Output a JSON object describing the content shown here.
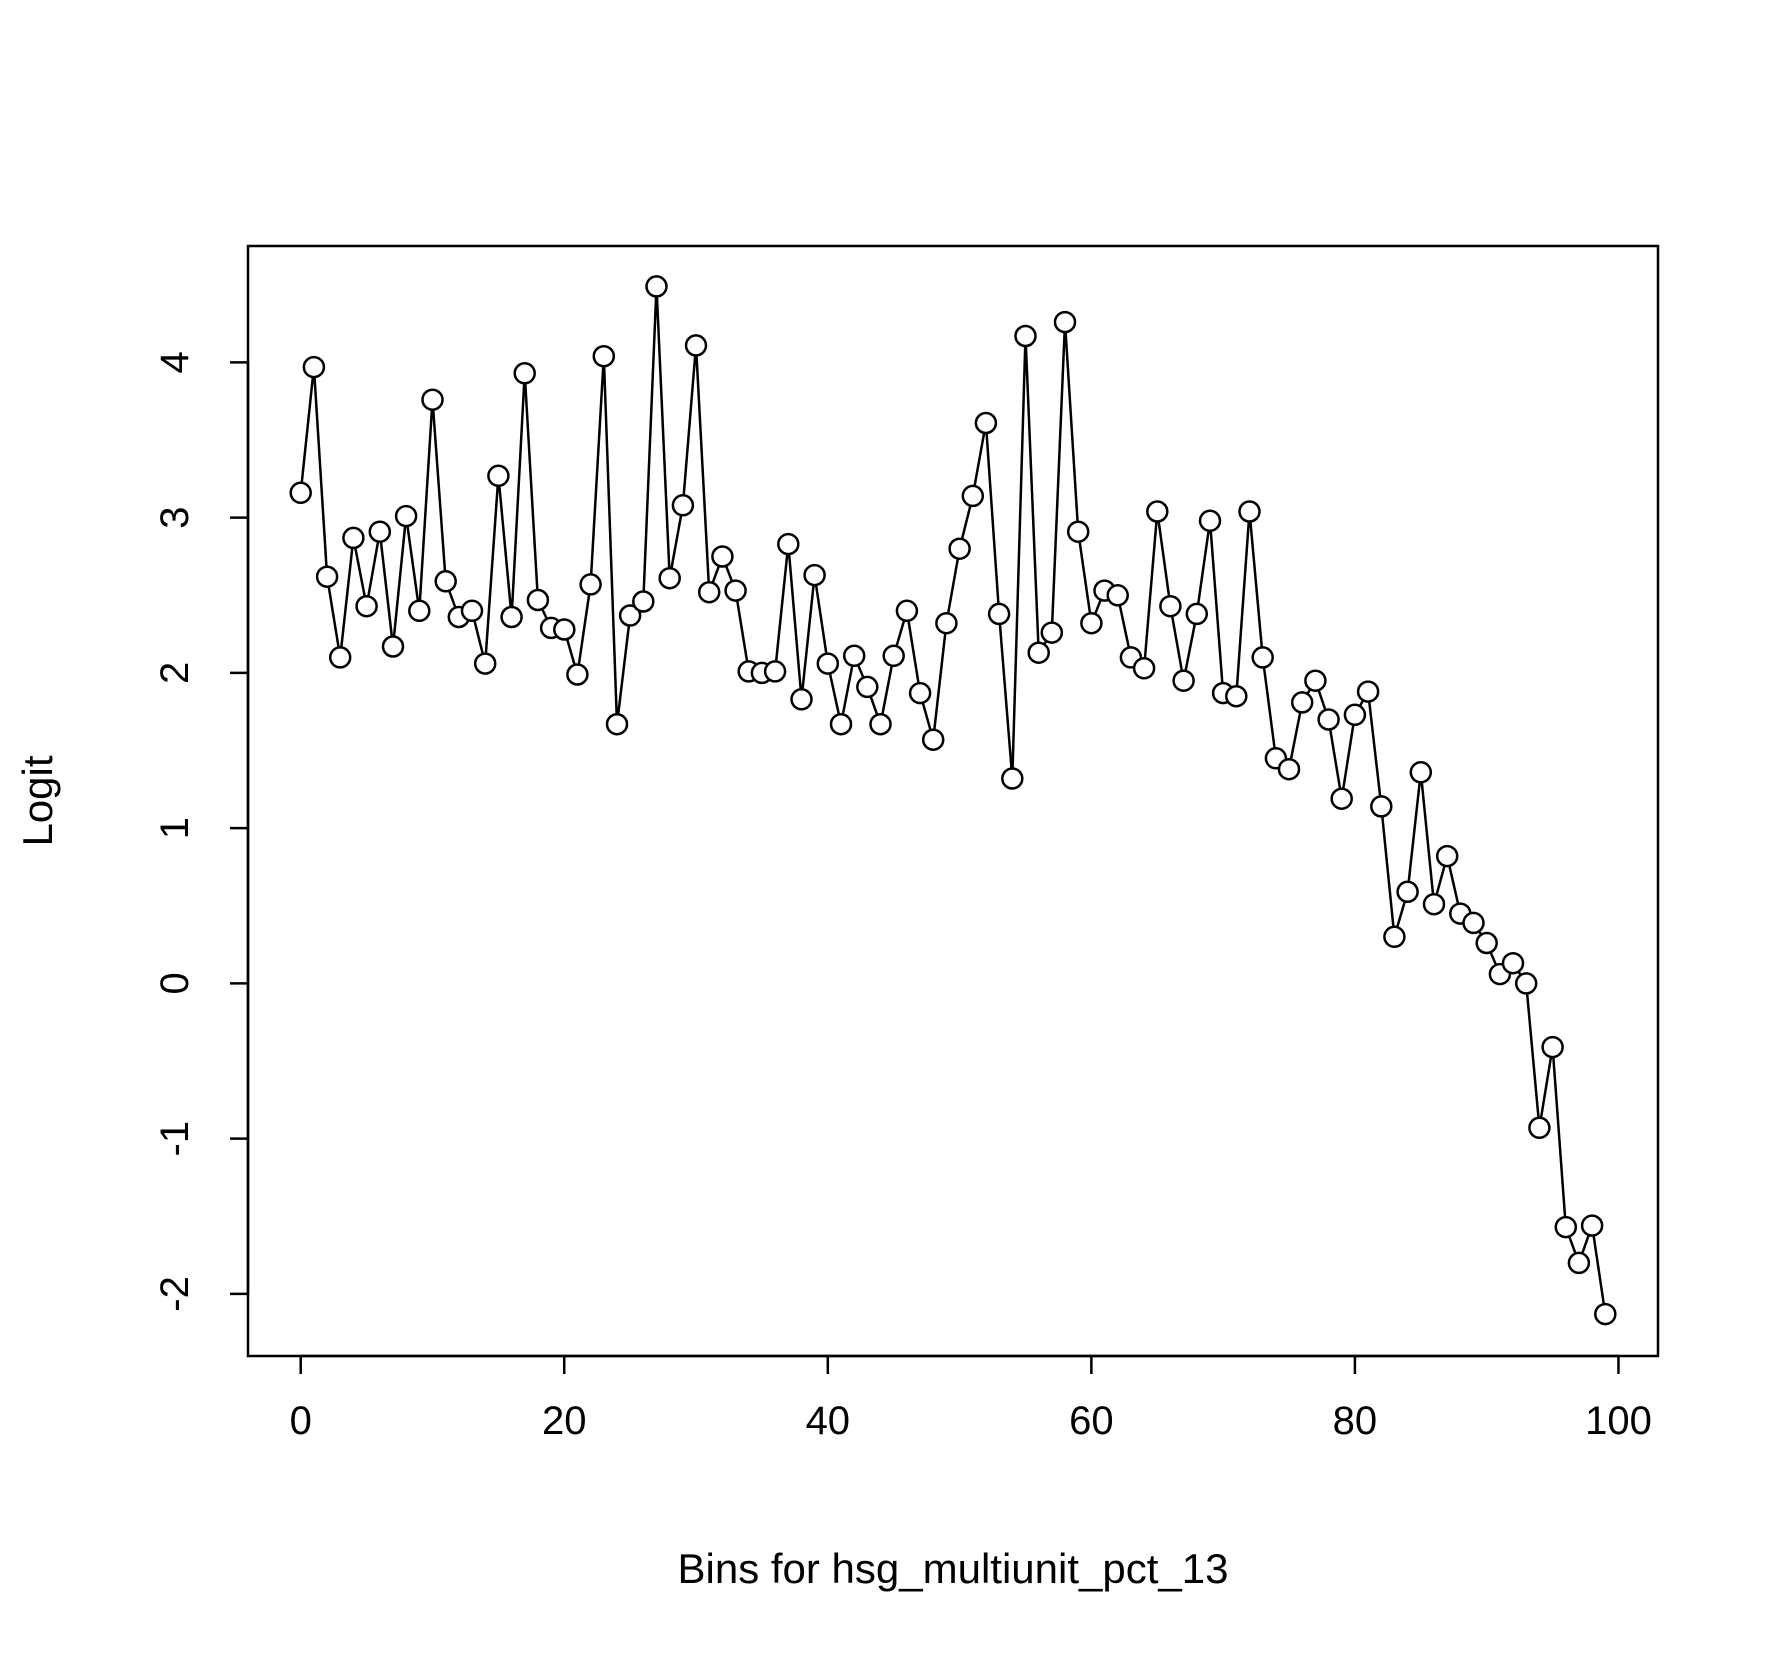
{
  "chart_data": {
    "type": "line",
    "title": "",
    "xlabel": "Bins for  hsg_multiunit_pct_13",
    "ylabel": "Logit",
    "xlim": [
      -4,
      103
    ],
    "ylim": [
      -2.4,
      4.75
    ],
    "xticks": [
      0,
      20,
      40,
      60,
      80,
      100
    ],
    "yticks": [
      -2,
      -1,
      0,
      1,
      2,
      3,
      4
    ],
    "xtick_labels": [
      "0",
      "20",
      "40",
      "60",
      "80",
      "100"
    ],
    "ytick_labels": [
      "-2",
      "-1",
      "0",
      "1",
      "2",
      "3",
      "4"
    ],
    "grid": false,
    "legend": "none",
    "marker": "open-circle",
    "line_color": "#000000",
    "series": [
      {
        "x": [
          0,
          1,
          2,
          3,
          4,
          5,
          6,
          7,
          8,
          9,
          10,
          11,
          12,
          13,
          14,
          15,
          16,
          17,
          18,
          19,
          20,
          21,
          22,
          23,
          24,
          25,
          26,
          27,
          28,
          29,
          30,
          31,
          32,
          33,
          34,
          35,
          36,
          37,
          38,
          39,
          40,
          41,
          42,
          43,
          44,
          45,
          46,
          47,
          48,
          49,
          50,
          51,
          52,
          53,
          54,
          55,
          56,
          57,
          58,
          59,
          60,
          61,
          62,
          63,
          64,
          65,
          66,
          67,
          68,
          69,
          70,
          71,
          72,
          73,
          74,
          75,
          76,
          77,
          78,
          79,
          80,
          81,
          82,
          83,
          84,
          85,
          86,
          87,
          88,
          89,
          90,
          91,
          92,
          93,
          94,
          95,
          96,
          97,
          98,
          99
        ],
        "values": [
          3.16,
          3.97,
          2.62,
          2.1,
          2.87,
          2.43,
          2.91,
          2.17,
          3.01,
          2.4,
          3.76,
          2.59,
          2.36,
          2.4,
          2.06,
          3.27,
          2.36,
          3.93,
          2.47,
          2.29,
          2.28,
          1.99,
          2.57,
          4.04,
          1.67,
          2.37,
          2.46,
          4.49,
          2.61,
          3.08,
          4.11,
          2.52,
          2.75,
          2.53,
          2.01,
          2.0,
          2.01,
          2.83,
          1.83,
          2.63,
          2.06,
          1.67,
          2.11,
          1.91,
          1.67,
          2.11,
          2.4,
          1.87,
          1.57,
          2.32,
          2.8,
          3.14,
          3.61,
          2.38,
          1.32,
          4.17,
          2.13,
          2.26,
          4.26,
          2.91,
          2.32,
          2.53,
          2.5,
          2.1,
          2.03,
          3.04,
          2.43,
          1.95,
          2.38,
          2.98,
          1.87,
          1.85,
          3.04,
          2.1,
          1.45,
          1.38,
          1.81,
          1.95,
          1.7,
          1.19,
          1.73,
          1.88,
          1.14,
          0.3,
          0.59,
          1.36,
          0.51,
          0.82,
          0.45,
          0.39,
          0.26,
          0.06,
          0.13,
          0.0,
          -0.93,
          -0.41,
          -1.57,
          -1.8,
          -1.56,
          -2.13
        ]
      }
    ]
  }
}
